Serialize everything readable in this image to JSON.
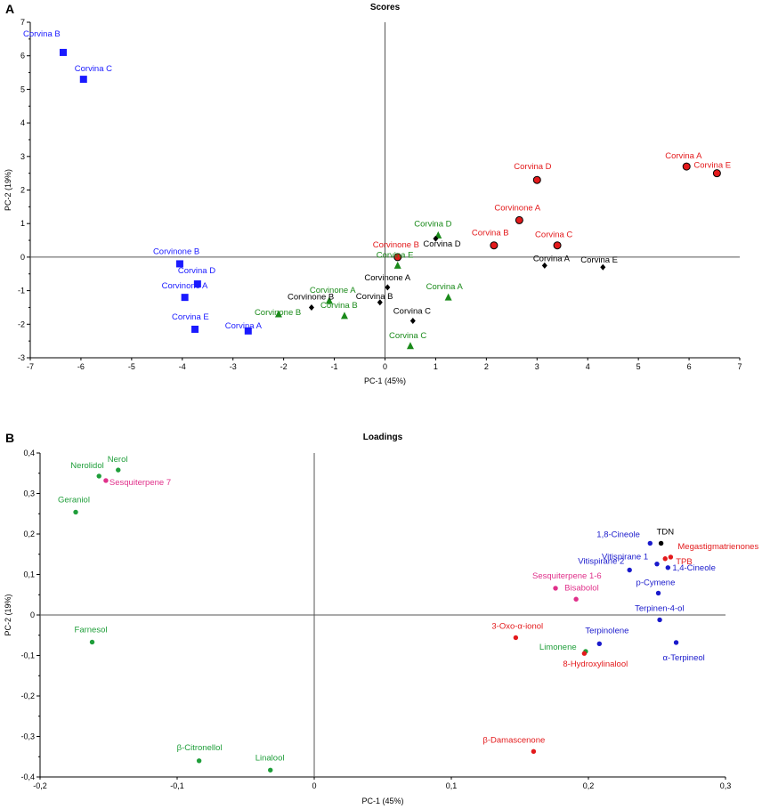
{
  "panel_labels": {
    "scores": "A",
    "loadings": "B"
  },
  "chart_data": [
    {
      "type": "scatter",
      "title": "Scores",
      "xlabel": "PC-1 (45%)",
      "ylabel": "PC-2 (19%)",
      "xlim": [
        -7,
        7
      ],
      "ylim": [
        -3,
        7
      ],
      "xticks": [
        "-7",
        "-6",
        "-5",
        "-4",
        "-3",
        "-2",
        "-1",
        "0",
        "1",
        "2",
        "3",
        "4",
        "5",
        "6",
        "7"
      ],
      "yticks": [
        "-3",
        "-2",
        "-1",
        "0",
        "1",
        "2",
        "3",
        "4",
        "5",
        "6",
        "7"
      ],
      "grid": false,
      "colors": {
        "blue": "#1a1aff",
        "red": "#e31a1c",
        "green": "#1a8a1a",
        "black": "#000000"
      },
      "points": [
        {
          "label": "Corvina B",
          "x": -6.35,
          "y": 6.1,
          "color": "blue",
          "marker": "square"
        },
        {
          "label": "Corvina C",
          "x": -5.95,
          "y": 5.3,
          "color": "blue",
          "marker": "square"
        },
        {
          "label": "Corvinone B",
          "x": -4.05,
          "y": -0.2,
          "color": "blue",
          "marker": "square"
        },
        {
          "label": "Corvina D",
          "x": -3.7,
          "y": -0.8,
          "color": "blue",
          "marker": "square"
        },
        {
          "label": "Corvinone A",
          "x": -3.95,
          "y": -1.2,
          "color": "blue",
          "marker": "square"
        },
        {
          "label": "Corvina E",
          "x": -3.75,
          "y": -2.15,
          "color": "blue",
          "marker": "square"
        },
        {
          "label": "Corvina A",
          "x": -2.7,
          "y": -2.2,
          "color": "blue",
          "marker": "square"
        },
        {
          "label": "Corvina A",
          "x": 5.95,
          "y": 2.7,
          "color": "red",
          "marker": "circle"
        },
        {
          "label": "Corvina E",
          "x": 6.55,
          "y": 2.5,
          "color": "red",
          "marker": "circle"
        },
        {
          "label": "Corvina D",
          "x": 3.0,
          "y": 2.3,
          "color": "red",
          "marker": "circle"
        },
        {
          "label": "Corvinone A",
          "x": 2.65,
          "y": 1.1,
          "color": "red",
          "marker": "circle"
        },
        {
          "label": "Corvina B",
          "x": 2.15,
          "y": 0.35,
          "color": "red",
          "marker": "circle"
        },
        {
          "label": "Corvina C",
          "x": 3.4,
          "y": 0.35,
          "color": "red",
          "marker": "circle"
        },
        {
          "label": "Corvinone B",
          "x": 0.25,
          "y": 0.0,
          "color": "red",
          "marker": "circle"
        },
        {
          "label": "Corvina D",
          "x": 1.05,
          "y": 0.65,
          "color": "green",
          "marker": "triangle"
        },
        {
          "label": "Corvina E",
          "x": 0.25,
          "y": -0.25,
          "color": "green",
          "marker": "triangle"
        },
        {
          "label": "Corvina A",
          "x": 1.25,
          "y": -1.2,
          "color": "green",
          "marker": "triangle"
        },
        {
          "label": "Corvina C",
          "x": 0.5,
          "y": -2.65,
          "color": "green",
          "marker": "triangle"
        },
        {
          "label": "Corvinone A",
          "x": -1.1,
          "y": -1.3,
          "color": "green",
          "marker": "triangle"
        },
        {
          "label": "Corvinone B",
          "x": -2.1,
          "y": -1.7,
          "color": "green",
          "marker": "triangle"
        },
        {
          "label": "Corvina B",
          "x": -0.8,
          "y": -1.75,
          "color": "green",
          "marker": "triangle"
        },
        {
          "label": "Corvina D",
          "x": 1.0,
          "y": 0.55,
          "color": "black",
          "marker": "diamond"
        },
        {
          "label": "Corvina A",
          "x": 3.15,
          "y": -0.25,
          "color": "black",
          "marker": "diamond"
        },
        {
          "label": "Corvina E",
          "x": 4.3,
          "y": -0.3,
          "color": "black",
          "marker": "diamond"
        },
        {
          "label": "Corvinone A",
          "x": 0.05,
          "y": -0.9,
          "color": "black",
          "marker": "diamond"
        },
        {
          "label": "Corvinone B",
          "x": -1.45,
          "y": -1.5,
          "color": "black",
          "marker": "diamond"
        },
        {
          "label": "Corvina B",
          "x": -0.1,
          "y": -1.35,
          "color": "black",
          "marker": "diamond"
        },
        {
          "label": "Corvina C",
          "x": 0.55,
          "y": -1.9,
          "color": "black",
          "marker": "diamond"
        }
      ]
    },
    {
      "type": "scatter",
      "title": "Loadings",
      "xlabel": "PC-1 (45%)",
      "ylabel": "PC-2 (19%)",
      "xlim": [
        -0.2,
        0.3
      ],
      "ylim": [
        -0.4,
        0.4
      ],
      "xticks": [
        "-0,2",
        "-0,1",
        "0",
        "0,1",
        "0,2",
        "0,3"
      ],
      "yticks": [
        "-0,4",
        "-0,3",
        "-0,2",
        "-0,1",
        "0",
        "0,1",
        "0,2",
        "0,3",
        "0,4"
      ],
      "grid": false,
      "colors": {
        "green": "#1f9e3a",
        "pink": "#e0308a",
        "blue": "#1a1acc",
        "red": "#e31a1c",
        "black": "#000000"
      },
      "points": [
        {
          "label": "Nerol",
          "x": -0.143,
          "y": 0.358,
          "color": "green"
        },
        {
          "label": "Nerolidol",
          "x": -0.157,
          "y": 0.343,
          "color": "green"
        },
        {
          "label": "Sesquiterpene  7",
          "x": -0.152,
          "y": 0.332,
          "color": "pink"
        },
        {
          "label": "Geraniol",
          "x": -0.174,
          "y": 0.254,
          "color": "green"
        },
        {
          "label": "Farnesol",
          "x": -0.162,
          "y": -0.067,
          "color": "green"
        },
        {
          "label": "β-Citronellol",
          "x": -0.084,
          "y": -0.36,
          "color": "green"
        },
        {
          "label": "Linalool",
          "x": -0.032,
          "y": -0.383,
          "color": "green"
        },
        {
          "label": "TDN",
          "x": 0.253,
          "y": 0.177,
          "color": "black"
        },
        {
          "label": "1,8-Cineole",
          "x": 0.245,
          "y": 0.177,
          "color": "blue"
        },
        {
          "label": "Megastigmatrienones",
          "x": 0.26,
          "y": 0.143,
          "color": "red"
        },
        {
          "label": "TPB",
          "x": 0.256,
          "y": 0.139,
          "color": "red"
        },
        {
          "label": "Vitispirane  1",
          "x": 0.25,
          "y": 0.126,
          "color": "blue"
        },
        {
          "label": "Vitispirane  2",
          "x": 0.23,
          "y": 0.111,
          "color": "blue"
        },
        {
          "label": "1,4-Cineole",
          "x": 0.258,
          "y": 0.117,
          "color": "blue"
        },
        {
          "label": "p-Cymene",
          "x": 0.251,
          "y": 0.054,
          "color": "blue"
        },
        {
          "label": "Sesquiterpene  1-6",
          "x": 0.176,
          "y": 0.066,
          "color": "pink"
        },
        {
          "label": "Bisabolol",
          "x": 0.191,
          "y": 0.039,
          "color": "pink"
        },
        {
          "label": "Terpinen-4-ol",
          "x": 0.252,
          "y": -0.012,
          "color": "blue"
        },
        {
          "label": "3-Oxo-α-ionol",
          "x": 0.147,
          "y": -0.056,
          "color": "red"
        },
        {
          "label": "Terpinolene",
          "x": 0.208,
          "y": -0.071,
          "color": "blue"
        },
        {
          "label": "α-Terpineol",
          "x": 0.264,
          "y": -0.068,
          "color": "blue"
        },
        {
          "label": "Limonene",
          "x": 0.198,
          "y": -0.09,
          "color": "green"
        },
        {
          "label": "8-Hydroxylinalool",
          "x": 0.197,
          "y": -0.095,
          "color": "red"
        },
        {
          "label": "β-Damascenone",
          "x": 0.16,
          "y": -0.337,
          "color": "red"
        }
      ]
    }
  ]
}
